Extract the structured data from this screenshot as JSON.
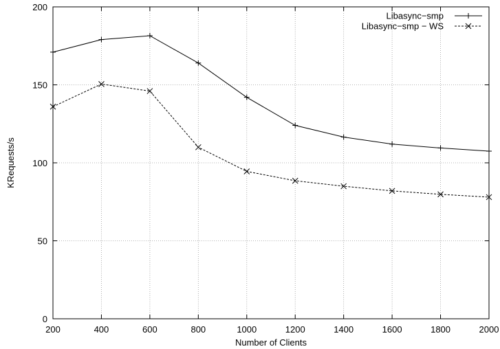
{
  "chart_data": {
    "type": "line",
    "title": "",
    "xlabel": "Number of Clients",
    "ylabel": "KRequests/s",
    "x": [
      200,
      400,
      600,
      800,
      1000,
      1200,
      1400,
      1600,
      1800,
      2000
    ],
    "xlim": [
      200,
      2000
    ],
    "ylim": [
      0,
      200
    ],
    "xticks": [
      200,
      400,
      600,
      800,
      1000,
      1200,
      1400,
      1600,
      1800,
      2000
    ],
    "yticks": [
      0,
      50,
      100,
      150,
      200
    ],
    "grid": true,
    "legend_position": "top-right",
    "series": [
      {
        "name": "Libasync−smp",
        "marker": "plus",
        "line": "solid",
        "values": [
          171,
          179,
          181.5,
          164,
          142,
          124,
          116.5,
          112,
          109.5,
          107.5
        ]
      },
      {
        "name": "Libasync−smp − WS",
        "marker": "x",
        "line": "dashed",
        "values": [
          136,
          150.5,
          146,
          110,
          94.5,
          88.5,
          85,
          82,
          79.8,
          78
        ]
      }
    ]
  }
}
